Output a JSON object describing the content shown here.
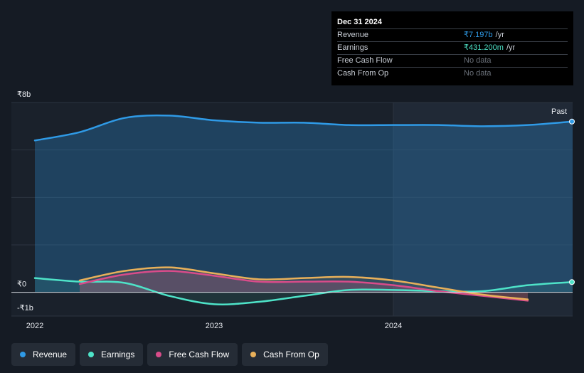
{
  "tooltip": {
    "date": "Dec 31 2024",
    "rows": [
      {
        "name": "Revenue",
        "value": "₹7.197b",
        "unit": "/yr"
      },
      {
        "name": "Earnings",
        "value": "₹431.200m",
        "unit": "/yr"
      },
      {
        "name": "Free Cash Flow",
        "value": "No data",
        "unit": ""
      },
      {
        "name": "Cash From Op",
        "value": "No data",
        "unit": ""
      }
    ]
  },
  "past_label": "Past",
  "legend": [
    {
      "label": "Revenue",
      "color": "#2f9ae6"
    },
    {
      "label": "Earnings",
      "color": "#4ee3c8"
    },
    {
      "label": "Free Cash Flow",
      "color": "#d94c8a"
    },
    {
      "label": "Cash From Op",
      "color": "#e8b05a"
    }
  ],
  "chart_data": {
    "type": "line",
    "y_tick_labels": [
      "₹8b",
      "₹0",
      "-₹1b"
    ],
    "x_tick_labels": [
      "2022",
      "2023",
      "2024"
    ],
    "ylim": [
      -1,
      8
    ],
    "xlim": [
      2022.0,
      2025.0
    ],
    "highlight_start": 2024.0,
    "grid": true,
    "series": [
      {
        "name": "Revenue",
        "color": "#2f9ae6",
        "x": [
          2022.0,
          2022.25,
          2022.5,
          2022.75,
          2023.0,
          2023.25,
          2023.5,
          2023.75,
          2024.0,
          2024.25,
          2024.5,
          2024.75,
          2025.0
        ],
        "y": [
          6.4,
          6.75,
          7.35,
          7.45,
          7.25,
          7.15,
          7.15,
          7.05,
          7.05,
          7.05,
          7.0,
          7.05,
          7.197
        ]
      },
      {
        "name": "Earnings",
        "color": "#4ee3c8",
        "x": [
          2022.0,
          2022.25,
          2022.5,
          2022.75,
          2023.0,
          2023.25,
          2023.5,
          2023.75,
          2024.0,
          2024.25,
          2024.5,
          2024.75,
          2025.0
        ],
        "y": [
          0.6,
          0.45,
          0.4,
          -0.15,
          -0.5,
          -0.4,
          -0.15,
          0.1,
          0.1,
          0.05,
          0.05,
          0.3,
          0.431
        ]
      },
      {
        "name": "Free Cash Flow",
        "color": "#d94c8a",
        "x": [
          2022.25,
          2022.5,
          2022.75,
          2023.0,
          2023.25,
          2023.5,
          2023.75,
          2024.0,
          2024.25,
          2024.5,
          2024.75
        ],
        "y": [
          0.35,
          0.75,
          0.9,
          0.7,
          0.45,
          0.45,
          0.45,
          0.3,
          0.05,
          -0.15,
          -0.35
        ]
      },
      {
        "name": "Cash From Op",
        "color": "#e8b05a",
        "x": [
          2022.25,
          2022.5,
          2022.75,
          2023.0,
          2023.25,
          2023.5,
          2023.75,
          2024.0,
          2024.25,
          2024.5,
          2024.75
        ],
        "y": [
          0.5,
          0.9,
          1.05,
          0.8,
          0.55,
          0.6,
          0.65,
          0.5,
          0.2,
          -0.1,
          -0.3
        ]
      }
    ]
  }
}
